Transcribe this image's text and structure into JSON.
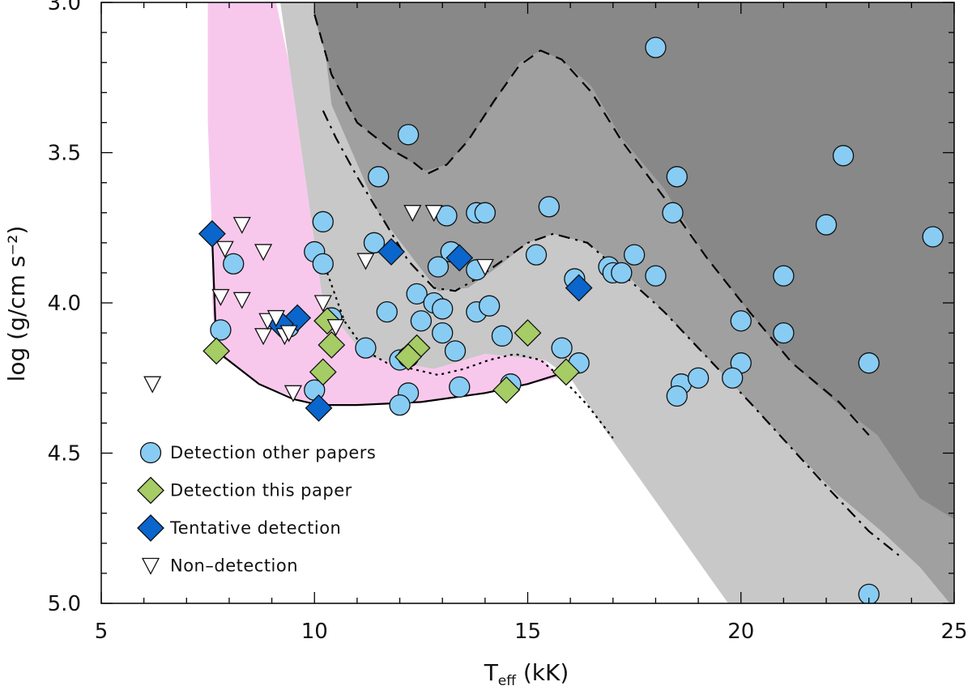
{
  "chart_data": {
    "type": "scatter",
    "title": "",
    "xlabel_main": "T",
    "xlabel_sub": "eff",
    "xlabel_unit": "(kK)",
    "ylabel": "log (g/cm s⁻²)",
    "xlim": [
      5,
      25
    ],
    "ylim": [
      3.0,
      5.0
    ],
    "y_inverted": true,
    "xticks": [
      5,
      10,
      15,
      20,
      25
    ],
    "xtick_labels": [
      "5",
      "10",
      "15",
      "20",
      "25"
    ],
    "yticks": [
      3.0,
      3.5,
      4.0,
      4.5,
      5.0
    ],
    "ytick_labels": [
      "3.0",
      "3.5",
      "4.0",
      "4.5",
      "5.0"
    ],
    "colors": {
      "pink_region": "#f8c8ec",
      "gray_light": "#c8c8c8",
      "gray_mid": "#a0a0a0",
      "gray_dark": "#888888",
      "detection_other": "#88ccf4",
      "detection_this": "#a6cc66",
      "tentative": "#0a66cc",
      "non_detection": "#ffffff"
    },
    "regions": [
      {
        "name": "gray-light-region",
        "fill": "gray_light",
        "points": [
          [
            9.2,
            3.0
          ],
          [
            25,
            3.0
          ],
          [
            25,
            5.0
          ],
          [
            19.7,
            5.0
          ],
          [
            18.8,
            4.82
          ],
          [
            17.8,
            4.62
          ],
          [
            16.8,
            4.42
          ],
          [
            16.0,
            4.25
          ],
          [
            15.4,
            4.19
          ],
          [
            14.0,
            4.17
          ],
          [
            12.8,
            4.22
          ],
          [
            11.2,
            4.18
          ],
          [
            10.2,
            4.0
          ],
          [
            9.8,
            3.6
          ],
          [
            9.4,
            3.2
          ]
        ]
      },
      {
        "name": "gray-mid-region",
        "fill": "gray_mid",
        "points": [
          [
            11.9,
            3.0
          ],
          [
            25,
            3.0
          ],
          [
            25,
            5.0
          ],
          [
            24.9,
            5.0
          ],
          [
            24.2,
            4.88
          ],
          [
            23.3,
            4.76
          ],
          [
            22.2,
            4.63
          ],
          [
            21.1,
            4.47
          ],
          [
            20.2,
            4.33
          ],
          [
            19.2,
            4.18
          ],
          [
            18.2,
            4.03
          ],
          [
            17.2,
            3.89
          ],
          [
            16.4,
            3.8
          ],
          [
            15.6,
            3.77
          ],
          [
            15.0,
            3.8
          ],
          [
            14.3,
            3.88
          ],
          [
            13.6,
            3.95
          ],
          [
            12.9,
            3.96
          ],
          [
            12.3,
            3.85
          ],
          [
            11.5,
            3.7
          ],
          [
            10.4,
            3.34
          ],
          [
            10.2,
            3.1
          ]
        ]
      },
      {
        "name": "gray-dark-region",
        "fill": "gray_dark",
        "points": [
          [
            10.0,
            3.0
          ],
          [
            25,
            3.0
          ],
          [
            25,
            4.72
          ],
          [
            24.2,
            4.65
          ],
          [
            23.2,
            4.44
          ],
          [
            22.3,
            4.34
          ],
          [
            21.2,
            4.2
          ],
          [
            20.2,
            4.03
          ],
          [
            19.2,
            3.85
          ],
          [
            18.2,
            3.62
          ],
          [
            17.2,
            3.45
          ],
          [
            16.5,
            3.28
          ],
          [
            15.8,
            3.19
          ],
          [
            15.3,
            3.16
          ],
          [
            14.8,
            3.2
          ],
          [
            14.2,
            3.34
          ],
          [
            13.6,
            3.46
          ],
          [
            13.1,
            3.54
          ],
          [
            12.6,
            3.56
          ],
          [
            11.8,
            3.49
          ],
          [
            11.0,
            3.4
          ],
          [
            10.4,
            3.24
          ],
          [
            10.0,
            3.05
          ]
        ]
      },
      {
        "name": "pink-region",
        "fill": "pink_region",
        "points": [
          [
            7.5,
            3.0
          ],
          [
            9.1,
            3.0
          ],
          [
            9.4,
            3.2
          ],
          [
            9.8,
            3.6
          ],
          [
            10.2,
            4.0
          ],
          [
            11.2,
            4.18
          ],
          [
            12.8,
            4.22
          ],
          [
            14.0,
            4.17
          ],
          [
            15.4,
            4.19
          ],
          [
            15.7,
            4.25
          ],
          [
            14.0,
            4.3
          ],
          [
            12.5,
            4.33
          ],
          [
            11.0,
            4.34
          ],
          [
            10.0,
            4.34
          ],
          [
            8.7,
            4.27
          ],
          [
            7.7,
            4.16
          ],
          [
            7.6,
            4.0
          ],
          [
            7.6,
            3.78
          ],
          [
            7.5,
            3.4
          ]
        ]
      }
    ],
    "curves": [
      {
        "name": "dashed-curve",
        "style": "dashed",
        "points": [
          [
            10.0,
            3.04
          ],
          [
            10.4,
            3.24
          ],
          [
            11.0,
            3.4
          ],
          [
            11.8,
            3.49
          ],
          [
            12.3,
            3.53
          ],
          [
            12.65,
            3.57
          ],
          [
            13.1,
            3.54
          ],
          [
            13.6,
            3.46
          ],
          [
            14.2,
            3.33
          ],
          [
            14.8,
            3.21
          ],
          [
            15.3,
            3.16
          ],
          [
            15.8,
            3.19
          ],
          [
            16.5,
            3.3
          ],
          [
            17.2,
            3.46
          ],
          [
            18.2,
            3.65
          ],
          [
            19.2,
            3.85
          ],
          [
            20.2,
            4.03
          ],
          [
            21.2,
            4.2
          ],
          [
            22.3,
            4.33
          ],
          [
            23.0,
            4.44
          ]
        ]
      },
      {
        "name": "dashdot-curve",
        "style": "dashdot",
        "points": [
          [
            10.2,
            3.36
          ],
          [
            10.5,
            3.45
          ],
          [
            11.0,
            3.58
          ],
          [
            11.6,
            3.72
          ],
          [
            12.2,
            3.86
          ],
          [
            12.8,
            3.95
          ],
          [
            13.3,
            3.96
          ],
          [
            13.8,
            3.92
          ],
          [
            14.3,
            3.87
          ],
          [
            15.0,
            3.8
          ],
          [
            15.6,
            3.77
          ],
          [
            16.4,
            3.8
          ],
          [
            17.2,
            3.9
          ],
          [
            18.2,
            4.03
          ],
          [
            19.2,
            4.18
          ],
          [
            20.2,
            4.33
          ],
          [
            21.1,
            4.47
          ],
          [
            22.0,
            4.61
          ],
          [
            23.0,
            4.76
          ],
          [
            23.7,
            4.84
          ]
        ]
      },
      {
        "name": "dotted-curve",
        "style": "dotted",
        "points": [
          [
            10.3,
            3.9
          ],
          [
            10.7,
            4.06
          ],
          [
            11.2,
            4.16
          ],
          [
            11.7,
            4.2
          ],
          [
            12.3,
            4.22
          ],
          [
            12.9,
            4.24
          ],
          [
            13.5,
            4.22
          ],
          [
            14.1,
            4.19
          ],
          [
            14.7,
            4.17
          ],
          [
            15.3,
            4.19
          ],
          [
            15.8,
            4.25
          ],
          [
            16.4,
            4.34
          ],
          [
            17.0,
            4.45
          ]
        ]
      },
      {
        "name": "solid-boundary",
        "style": "solid",
        "points": [
          [
            7.6,
            3.78
          ],
          [
            7.7,
            4.16
          ],
          [
            8.7,
            4.27
          ],
          [
            9.5,
            4.32
          ],
          [
            10.1,
            4.34
          ],
          [
            11.0,
            4.34
          ],
          [
            12.5,
            4.33
          ],
          [
            14.0,
            4.3
          ],
          [
            15.0,
            4.27
          ],
          [
            15.9,
            4.23
          ]
        ]
      }
    ],
    "legend": {
      "position": "bottom-left",
      "entries": [
        {
          "label": "Detection other papers",
          "marker": "circle",
          "color": "detection_other"
        },
        {
          "label": "Detection this paper",
          "marker": "diamond",
          "color": "detection_this"
        },
        {
          "label": "Tentative detection",
          "marker": "diamond",
          "color": "tentative"
        },
        {
          "label": "Non–detection",
          "marker": "triangle-down",
          "color": "non_detection"
        }
      ]
    },
    "series": [
      {
        "name": "Detection other papers",
        "marker": "circle",
        "color": "detection_other",
        "points": [
          [
            18.0,
            3.15
          ],
          [
            12.2,
            3.44
          ],
          [
            11.5,
            3.58
          ],
          [
            18.5,
            3.58
          ],
          [
            22.4,
            3.51
          ],
          [
            15.5,
            3.68
          ],
          [
            13.1,
            3.71
          ],
          [
            13.8,
            3.7
          ],
          [
            14.0,
            3.7
          ],
          [
            10.2,
            3.73
          ],
          [
            18.4,
            3.7
          ],
          [
            22.0,
            3.74
          ],
          [
            24.5,
            3.78
          ],
          [
            11.4,
            3.8
          ],
          [
            10.0,
            3.83
          ],
          [
            13.2,
            3.83
          ],
          [
            15.2,
            3.84
          ],
          [
            17.5,
            3.84
          ],
          [
            8.1,
            3.87
          ],
          [
            10.2,
            3.87
          ],
          [
            12.9,
            3.88
          ],
          [
            13.8,
            3.89
          ],
          [
            16.9,
            3.88
          ],
          [
            17.0,
            3.9
          ],
          [
            17.2,
            3.9
          ],
          [
            18.0,
            3.91
          ],
          [
            21.0,
            3.91
          ],
          [
            16.1,
            3.92
          ],
          [
            12.4,
            3.97
          ],
          [
            12.8,
            4.0
          ],
          [
            13.0,
            4.02
          ],
          [
            13.8,
            4.03
          ],
          [
            14.1,
            4.01
          ],
          [
            11.7,
            4.03
          ],
          [
            12.5,
            4.06
          ],
          [
            20.0,
            4.06
          ],
          [
            7.8,
            4.09
          ],
          [
            9.4,
            4.08
          ],
          [
            10.4,
            4.05
          ],
          [
            13.0,
            4.1
          ],
          [
            14.4,
            4.11
          ],
          [
            21.0,
            4.1
          ],
          [
            11.2,
            4.15
          ],
          [
            13.3,
            4.16
          ],
          [
            15.8,
            4.15
          ],
          [
            12.0,
            4.19
          ],
          [
            12.2,
            4.18
          ],
          [
            16.2,
            4.2
          ],
          [
            20.0,
            4.2
          ],
          [
            23.0,
            4.2
          ],
          [
            14.6,
            4.27
          ],
          [
            18.6,
            4.27
          ],
          [
            19.0,
            4.25
          ],
          [
            19.8,
            4.25
          ],
          [
            13.4,
            4.28
          ],
          [
            12.2,
            4.3
          ],
          [
            18.5,
            4.31
          ],
          [
            10.0,
            4.29
          ],
          [
            12.0,
            4.34
          ],
          [
            23.0,
            4.97
          ]
        ]
      },
      {
        "name": "Detection this paper",
        "marker": "diamond",
        "color": "detection_this",
        "points": [
          [
            7.7,
            4.16
          ],
          [
            10.3,
            4.06
          ],
          [
            10.4,
            4.14
          ],
          [
            10.2,
            4.23
          ],
          [
            12.4,
            4.15
          ],
          [
            12.2,
            4.18
          ],
          [
            15.0,
            4.1
          ],
          [
            14.5,
            4.29
          ],
          [
            15.9,
            4.23
          ]
        ]
      },
      {
        "name": "Tentative detection",
        "marker": "diamond",
        "color": "tentative",
        "points": [
          [
            7.6,
            3.77
          ],
          [
            11.8,
            3.83
          ],
          [
            13.4,
            3.85
          ],
          [
            16.2,
            3.95
          ],
          [
            9.6,
            4.05
          ],
          [
            9.2,
            4.07
          ],
          [
            10.1,
            4.35
          ]
        ]
      },
      {
        "name": "Non-detection",
        "marker": "triangle-down",
        "color": "non_detection",
        "points": [
          [
            6.2,
            4.27
          ],
          [
            8.3,
            3.74
          ],
          [
            7.8,
            3.98
          ],
          [
            8.3,
            3.99
          ],
          [
            8.8,
            3.83
          ],
          [
            7.9,
            3.82
          ],
          [
            8.8,
            4.11
          ],
          [
            8.9,
            4.06
          ],
          [
            9.1,
            4.05
          ],
          [
            9.3,
            4.11
          ],
          [
            9.4,
            4.1
          ],
          [
            9.5,
            4.3
          ],
          [
            10.2,
            4.0
          ],
          [
            10.5,
            4.08
          ],
          [
            11.2,
            3.86
          ],
          [
            12.3,
            3.7
          ],
          [
            12.8,
            3.7
          ],
          [
            14.0,
            3.88
          ]
        ]
      }
    ]
  }
}
